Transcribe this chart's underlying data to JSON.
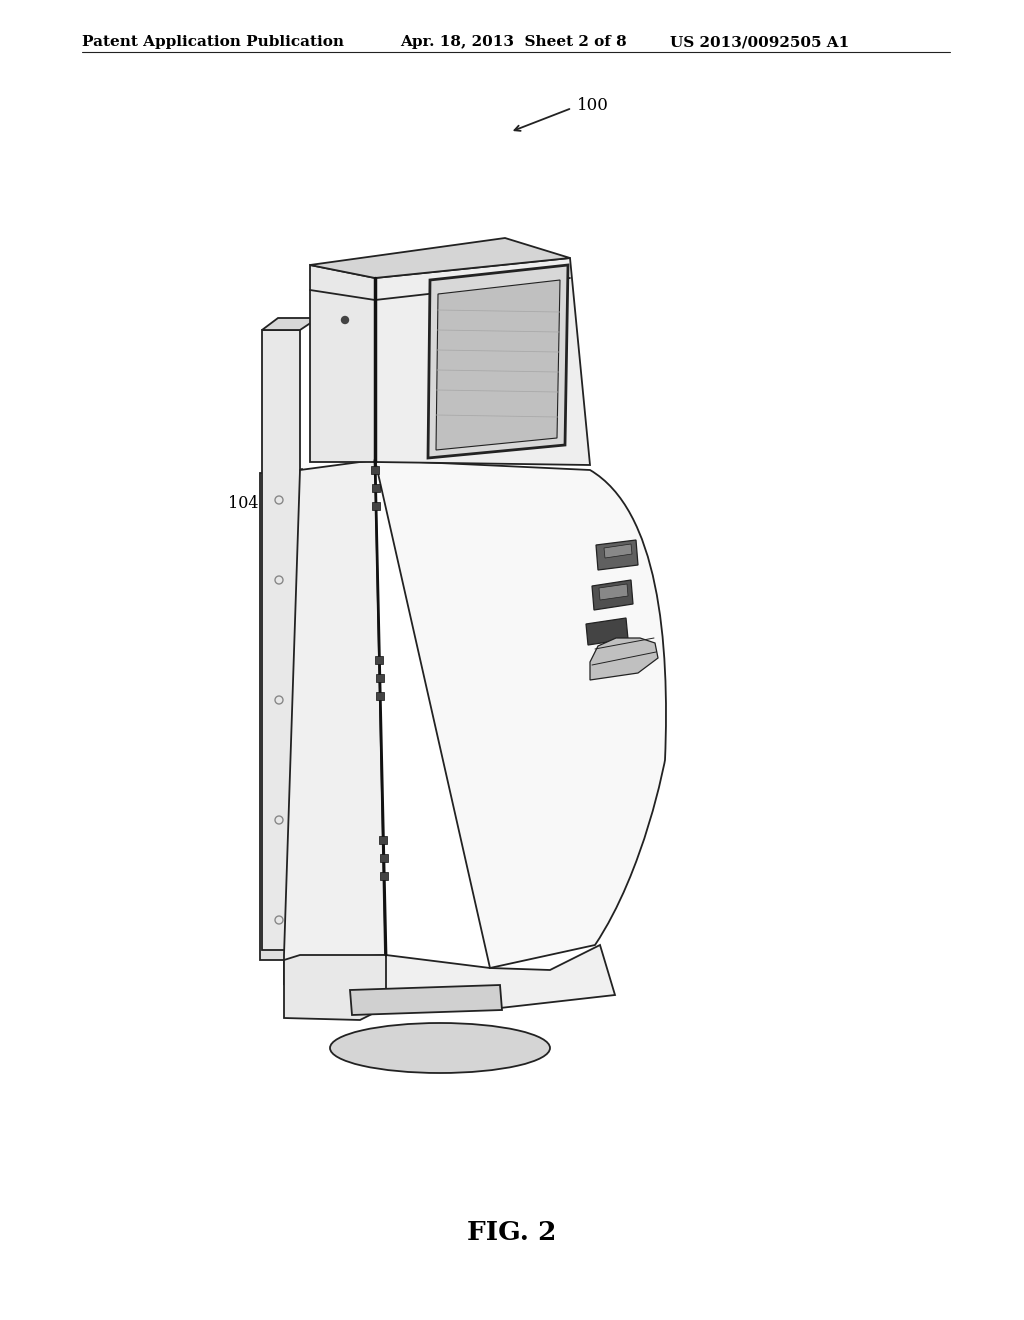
{
  "bg_color": "#ffffff",
  "line_color": "#222222",
  "header_left": "Patent Application Publication",
  "header_mid": "Apr. 18, 2013  Sheet 2 of 8",
  "header_right": "US 2013/0092505 A1",
  "fig_label": "FIG. 2",
  "label_fontsize": 11.5
}
